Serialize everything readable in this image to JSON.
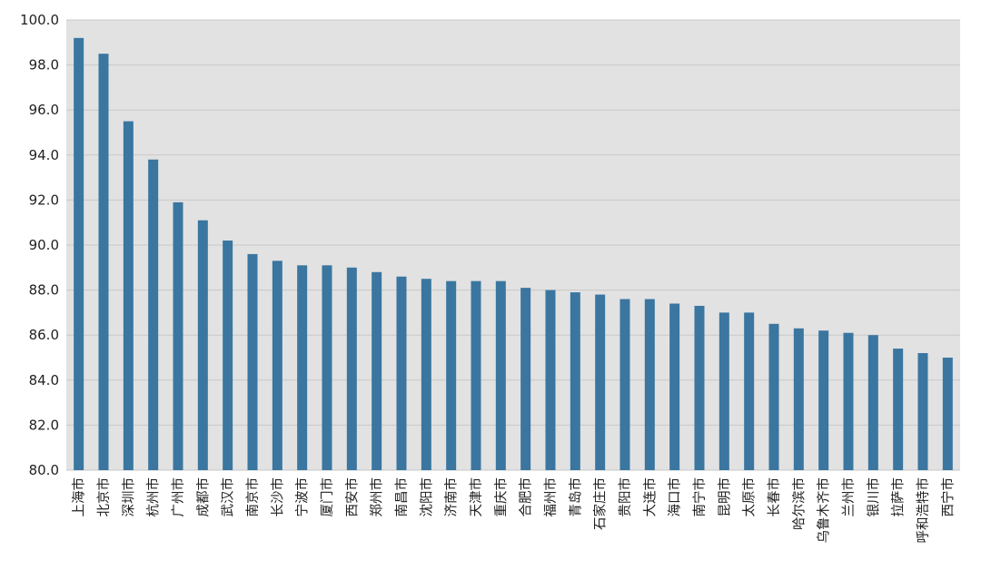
{
  "chart_data": {
    "type": "bar",
    "title": "",
    "xlabel": "",
    "ylabel": "",
    "ylim": [
      80,
      100
    ],
    "y_ticks": [
      "80.0",
      "82.0",
      "84.0",
      "86.0",
      "88.0",
      "90.0",
      "92.0",
      "94.0",
      "96.0",
      "98.0",
      "100.0"
    ],
    "grid": true,
    "legend": "none",
    "categories": [
      "上海市",
      "北京市",
      "深圳市",
      "杭州市",
      "广州市",
      "成都市",
      "武汉市",
      "南京市",
      "长沙市",
      "宁波市",
      "厦门市",
      "西安市",
      "郑州市",
      "南昌市",
      "沈阳市",
      "济南市",
      "天津市",
      "重庆市",
      "合肥市",
      "福州市",
      "青岛市",
      "石家庄市",
      "贵阳市",
      "大连市",
      "海口市",
      "南宁市",
      "昆明市",
      "太原市",
      "长春市",
      "哈尔滨市",
      "乌鲁木齐市",
      "兰州市",
      "银川市",
      "拉萨市",
      "呼和浩特市",
      "西宁市"
    ],
    "values": [
      99.2,
      98.5,
      95.5,
      93.8,
      91.9,
      91.1,
      90.2,
      89.6,
      89.3,
      89.1,
      89.1,
      89.0,
      88.8,
      88.6,
      88.5,
      88.4,
      88.4,
      88.4,
      88.1,
      88.0,
      87.9,
      87.8,
      87.6,
      87.6,
      87.4,
      87.3,
      87.0,
      87.0,
      86.5,
      86.3,
      86.2,
      86.1,
      86.0,
      85.4,
      85.2,
      85.0
    ],
    "colors": {
      "bar": "#3a76a0",
      "plot_background": "#e2e2e2",
      "grid": "#c8c8c8"
    }
  }
}
